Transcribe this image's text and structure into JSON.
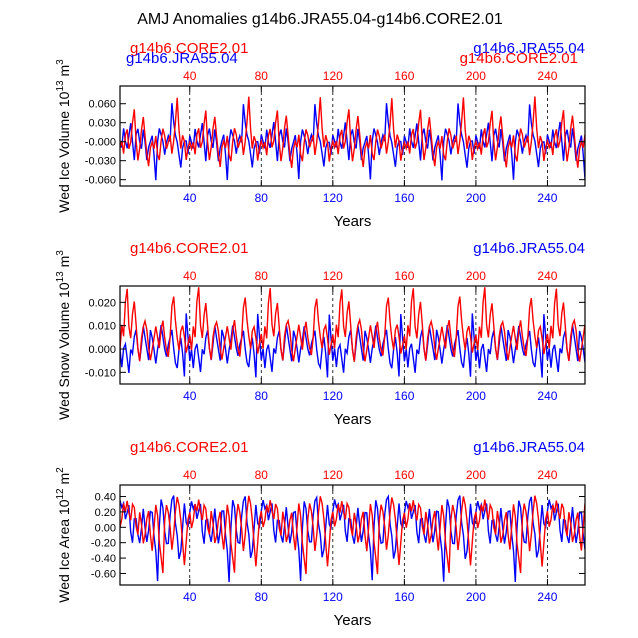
{
  "figure": {
    "title": "AMJ Anomalies g14b6.JRA55.04-g14b6.CORE2.01"
  },
  "colors": {
    "red": "#ff0000",
    "blue": "#0000ff",
    "axis": "#000000",
    "grid": "#000000"
  },
  "chart_data": [
    {
      "type": "line",
      "name": "ice-volume",
      "ylabel_main": "Wed Ice Volume 10",
      "ylabel_exp": "13",
      "ylabel_unit": " m",
      "ylabel_unit_exp": "3",
      "xlabel": "Years",
      "legend_left": "g14b6.CORE2.01",
      "legend_right": "g14b6.JRA55.04",
      "legend_left_overlap": "g14b6.JRA55.04",
      "legend_right_overlap": "g14b6.CORE2.01",
      "xlim": [
        1,
        261
      ],
      "ylim": [
        -0.07,
        0.088
      ],
      "yticks": [
        0.06,
        0.03,
        0.0,
        -0.03,
        -0.06
      ],
      "ytick_labels": [
        "0.060",
        "0.030",
        "-0.000",
        "-0.030",
        "-0.060"
      ],
      "xticks": [
        40,
        80,
        120,
        160,
        200,
        240
      ],
      "xtick_labels": [
        "40",
        "80",
        "120",
        "160",
        "200",
        "240"
      ],
      "cycle_red": [
        -0.01,
        0.0,
        -0.02,
        0.01,
        0.02,
        -0.01,
        0.0,
        0.03,
        0.05,
        0.0,
        -0.03,
        -0.01,
        0.02,
        0.04,
        0.01,
        -0.02,
        -0.04,
        -0.01,
        0.0,
        -0.01,
        0.01,
        -0.02,
        -0.03,
        0.0,
        0.02,
        0.01,
        -0.01,
        0.0,
        0.01,
        -0.02,
        0.0,
        0.03,
        0.07,
        0.02,
        -0.01,
        0.01,
        0.0,
        -0.03,
        -0.01,
        0.0
      ],
      "cycle_blue": [
        0.0,
        -0.02,
        0.01,
        0.0,
        -0.01,
        0.02,
        0.0,
        -0.01,
        0.01,
        0.03,
        0.0,
        -0.03,
        0.01,
        0.02,
        0.0,
        -0.01,
        0.02,
        0.0,
        -0.03,
        -0.01,
        0.0,
        0.01,
        -0.02,
        -0.06,
        0.0,
        0.02,
        0.01,
        0.0,
        -0.02,
        0.0,
        0.01,
        0.0,
        0.06,
        0.03,
        0.01,
        0.0,
        -0.02,
        -0.04,
        -0.01,
        0.0
      ],
      "series": [
        {
          "name": "g14b6.CORE2.01",
          "color": "#ff0000"
        },
        {
          "name": "g14b6.JRA55.04",
          "color": "#0000ff"
        }
      ]
    },
    {
      "type": "line",
      "name": "snow-volume",
      "ylabel_main": "Wed Snow Volume 10",
      "ylabel_exp": "13",
      "ylabel_unit": " m",
      "ylabel_unit_exp": "3",
      "xlabel": "Years",
      "legend_left": "g14b6.CORE2.01",
      "legend_right": "g14b6.JRA55.04",
      "xlim": [
        1,
        261
      ],
      "ylim": [
        -0.015,
        0.027
      ],
      "yticks": [
        0.02,
        0.01,
        0.0,
        -0.01
      ],
      "ytick_labels": [
        "0.020",
        "0.010",
        "0.000",
        "-0.010"
      ],
      "xticks": [
        40,
        80,
        120,
        160,
        200,
        240
      ],
      "xtick_labels": [
        "40",
        "80",
        "120",
        "160",
        "200",
        "240"
      ],
      "cycle_red": [
        0.0,
        0.01,
        0.005,
        0.02,
        0.026,
        0.01,
        0.005,
        0.015,
        0.02,
        0.01,
        0.0,
        -0.005,
        0.005,
        0.01,
        0.012,
        0.008,
        0.0,
        -0.005,
        0.0,
        0.005,
        0.01,
        0.005,
        0.0,
        0.008,
        0.012,
        0.005,
        0.0,
        -0.003,
        0.005,
        0.018,
        0.022,
        0.012,
        0.005,
        0.0,
        0.008,
        0.01,
        0.005,
        -0.002,
        0.002,
        0.006
      ],
      "cycle_blue": [
        0.015,
        0.005,
        -0.005,
        0.0,
        -0.008,
        0.0,
        0.002,
        -0.004,
        -0.01,
        0.0,
        -0.002,
        0.005,
        0.008,
        0.0,
        -0.005,
        0.002,
        0.01,
        0.005,
        0.0,
        -0.005,
        0.008,
        0.005,
        0.0,
        -0.006,
        0.0,
        0.004,
        0.01,
        0.005,
        0.0,
        -0.003,
        0.002,
        0.005,
        0.008,
        0.0,
        -0.006,
        -0.008,
        0.0,
        0.005,
        -0.002,
        -0.012
      ],
      "series": [
        {
          "name": "g14b6.CORE2.01",
          "color": "#ff0000"
        },
        {
          "name": "g14b6.JRA55.04",
          "color": "#0000ff"
        }
      ]
    },
    {
      "type": "line",
      "name": "ice-area",
      "ylabel_main": "Wed Ice Area 10",
      "ylabel_exp": "12",
      "ylabel_unit": " m",
      "ylabel_unit_exp": "2",
      "xlabel": "Years",
      "legend_left": "g14b6.CORE2.01",
      "legend_right": "g14b6.JRA55.04",
      "xlim": [
        1,
        261
      ],
      "ylim": [
        -0.75,
        0.55
      ],
      "yticks": [
        0.4,
        0.2,
        0.0,
        -0.2,
        -0.4,
        -0.6
      ],
      "ytick_labels": [
        "0.40",
        "0.20",
        "0.00",
        "-0.20",
        "-0.40",
        "-0.60"
      ],
      "xticks": [
        40,
        80,
        120,
        160,
        200,
        240
      ],
      "xtick_labels": [
        "40",
        "80",
        "120",
        "160",
        "200",
        "240"
      ],
      "cycle_red": [
        0.0,
        0.1,
        0.3,
        0.2,
        0.35,
        0.2,
        0.1,
        0.3,
        0.25,
        0.0,
        -0.1,
        0.2,
        0.05,
        -0.2,
        -0.1,
        0.1,
        0.2,
        -0.1,
        -0.3,
        0.0,
        0.3,
        0.15,
        -0.2,
        -0.4,
        -0.6,
        0.1,
        0.3,
        0.2,
        0.0,
        -0.3,
        -0.1,
        0.2,
        0.4,
        0.3,
        0.1,
        -0.2,
        -0.5,
        -0.2,
        0.1,
        0.2
      ],
      "cycle_blue": [
        0.05,
        0.0,
        0.2,
        0.35,
        0.25,
        0.3,
        0.1,
        0.2,
        0.3,
        -0.05,
        -0.2,
        0.1,
        0.1,
        -0.1,
        -0.2,
        0.0,
        0.25,
        0.0,
        -0.2,
        -0.05,
        0.2,
        0.2,
        -0.1,
        -0.3,
        -0.7,
        0.0,
        0.35,
        0.25,
        -0.05,
        -0.2,
        -0.2,
        0.15,
        0.35,
        0.4,
        0.05,
        -0.1,
        -0.4,
        -0.3,
        0.0,
        0.3
      ],
      "series": [
        {
          "name": "g14b6.CORE2.01",
          "color": "#ff0000"
        },
        {
          "name": "g14b6.JRA55.04",
          "color": "#0000ff"
        }
      ]
    }
  ]
}
